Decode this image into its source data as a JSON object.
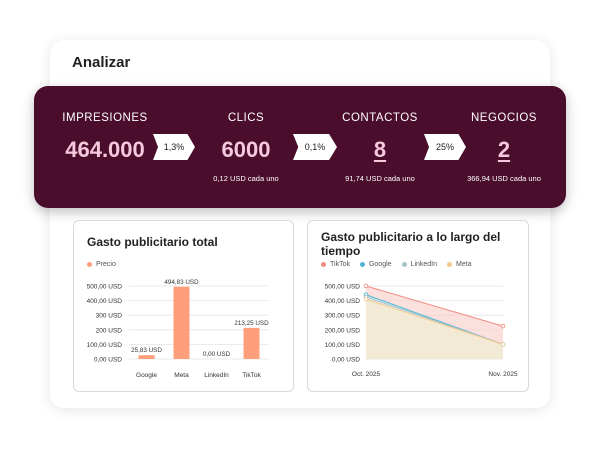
{
  "header": {
    "title": "Analizar"
  },
  "funnel": {
    "stages": [
      {
        "label": "IMPRESIONES",
        "value": "464.000",
        "sub": ""
      },
      {
        "label": "CLICS",
        "value": "6000",
        "sub": "0,12 USD cada uno"
      },
      {
        "label": "CONTACTOS",
        "value": "8",
        "sub": "91,74 USD cada uno"
      },
      {
        "label": "NEGOCIOS",
        "value": "2",
        "sub": "366,94 USD cada uno"
      }
    ],
    "rates": [
      "1,3%",
      "0,1%",
      "25%"
    ]
  },
  "bar_panel": {
    "title": "Gasto publicitario total"
  },
  "line_panel": {
    "title_line1": "Gasto publicitario a lo largo del",
    "title_line2": "tiempo"
  },
  "colors": {
    "brand": "#4a0d2b",
    "accent_value": "#f6c9dc",
    "bar": "#ff9e7a"
  },
  "chart_data": [
    {
      "type": "bar",
      "title": "Gasto publicitario total",
      "legend": [
        "Precio"
      ],
      "legend_placement": "top-left",
      "categories": [
        "Google",
        "Meta",
        "LinkedIn",
        "TikTok"
      ],
      "values": [
        25.83,
        494.83,
        0.0,
        213.25
      ],
      "value_labels": [
        "25,83 USD",
        "494,83 USD",
        "0,00 USD",
        "213,25 USD"
      ],
      "yticks": [
        "0,00 USD",
        "100,00 USD",
        "200 USD",
        "300 USD",
        "400,00 USD",
        "500,00 USD"
      ],
      "ytick_values": [
        0,
        100,
        200,
        300,
        400,
        500
      ],
      "ylim": [
        0,
        500
      ],
      "color": "#ff9e7a"
    },
    {
      "type": "area",
      "title": "Gasto publicitario a lo largo del tiempo",
      "legend_placement": "top-left",
      "x": [
        "Oct. 2025",
        "Nov. 2025"
      ],
      "series": [
        {
          "name": "TikTok",
          "values": [
            500,
            225
          ],
          "color": "#f28b82",
          "fill": "#fbd3cf"
        },
        {
          "name": "Google",
          "values": [
            440,
            100
          ],
          "color": "#4fb5d6",
          "fill": "#d6eef5"
        },
        {
          "name": "LinkedIn",
          "values": [
            425,
            100
          ],
          "color": "#a7c3c9",
          "fill": "#e3ecee"
        },
        {
          "name": "Meta",
          "values": [
            410,
            100
          ],
          "color": "#f3c98f",
          "fill": "#fbeacb"
        }
      ],
      "yticks": [
        "0,00 USD",
        "100,00 USD",
        "200,00 USD",
        "300,00 USD",
        "400,00 USD",
        "500,00 USD"
      ],
      "ytick_values": [
        0,
        100,
        200,
        300,
        400,
        500
      ],
      "ylim": [
        0,
        500
      ]
    }
  ]
}
